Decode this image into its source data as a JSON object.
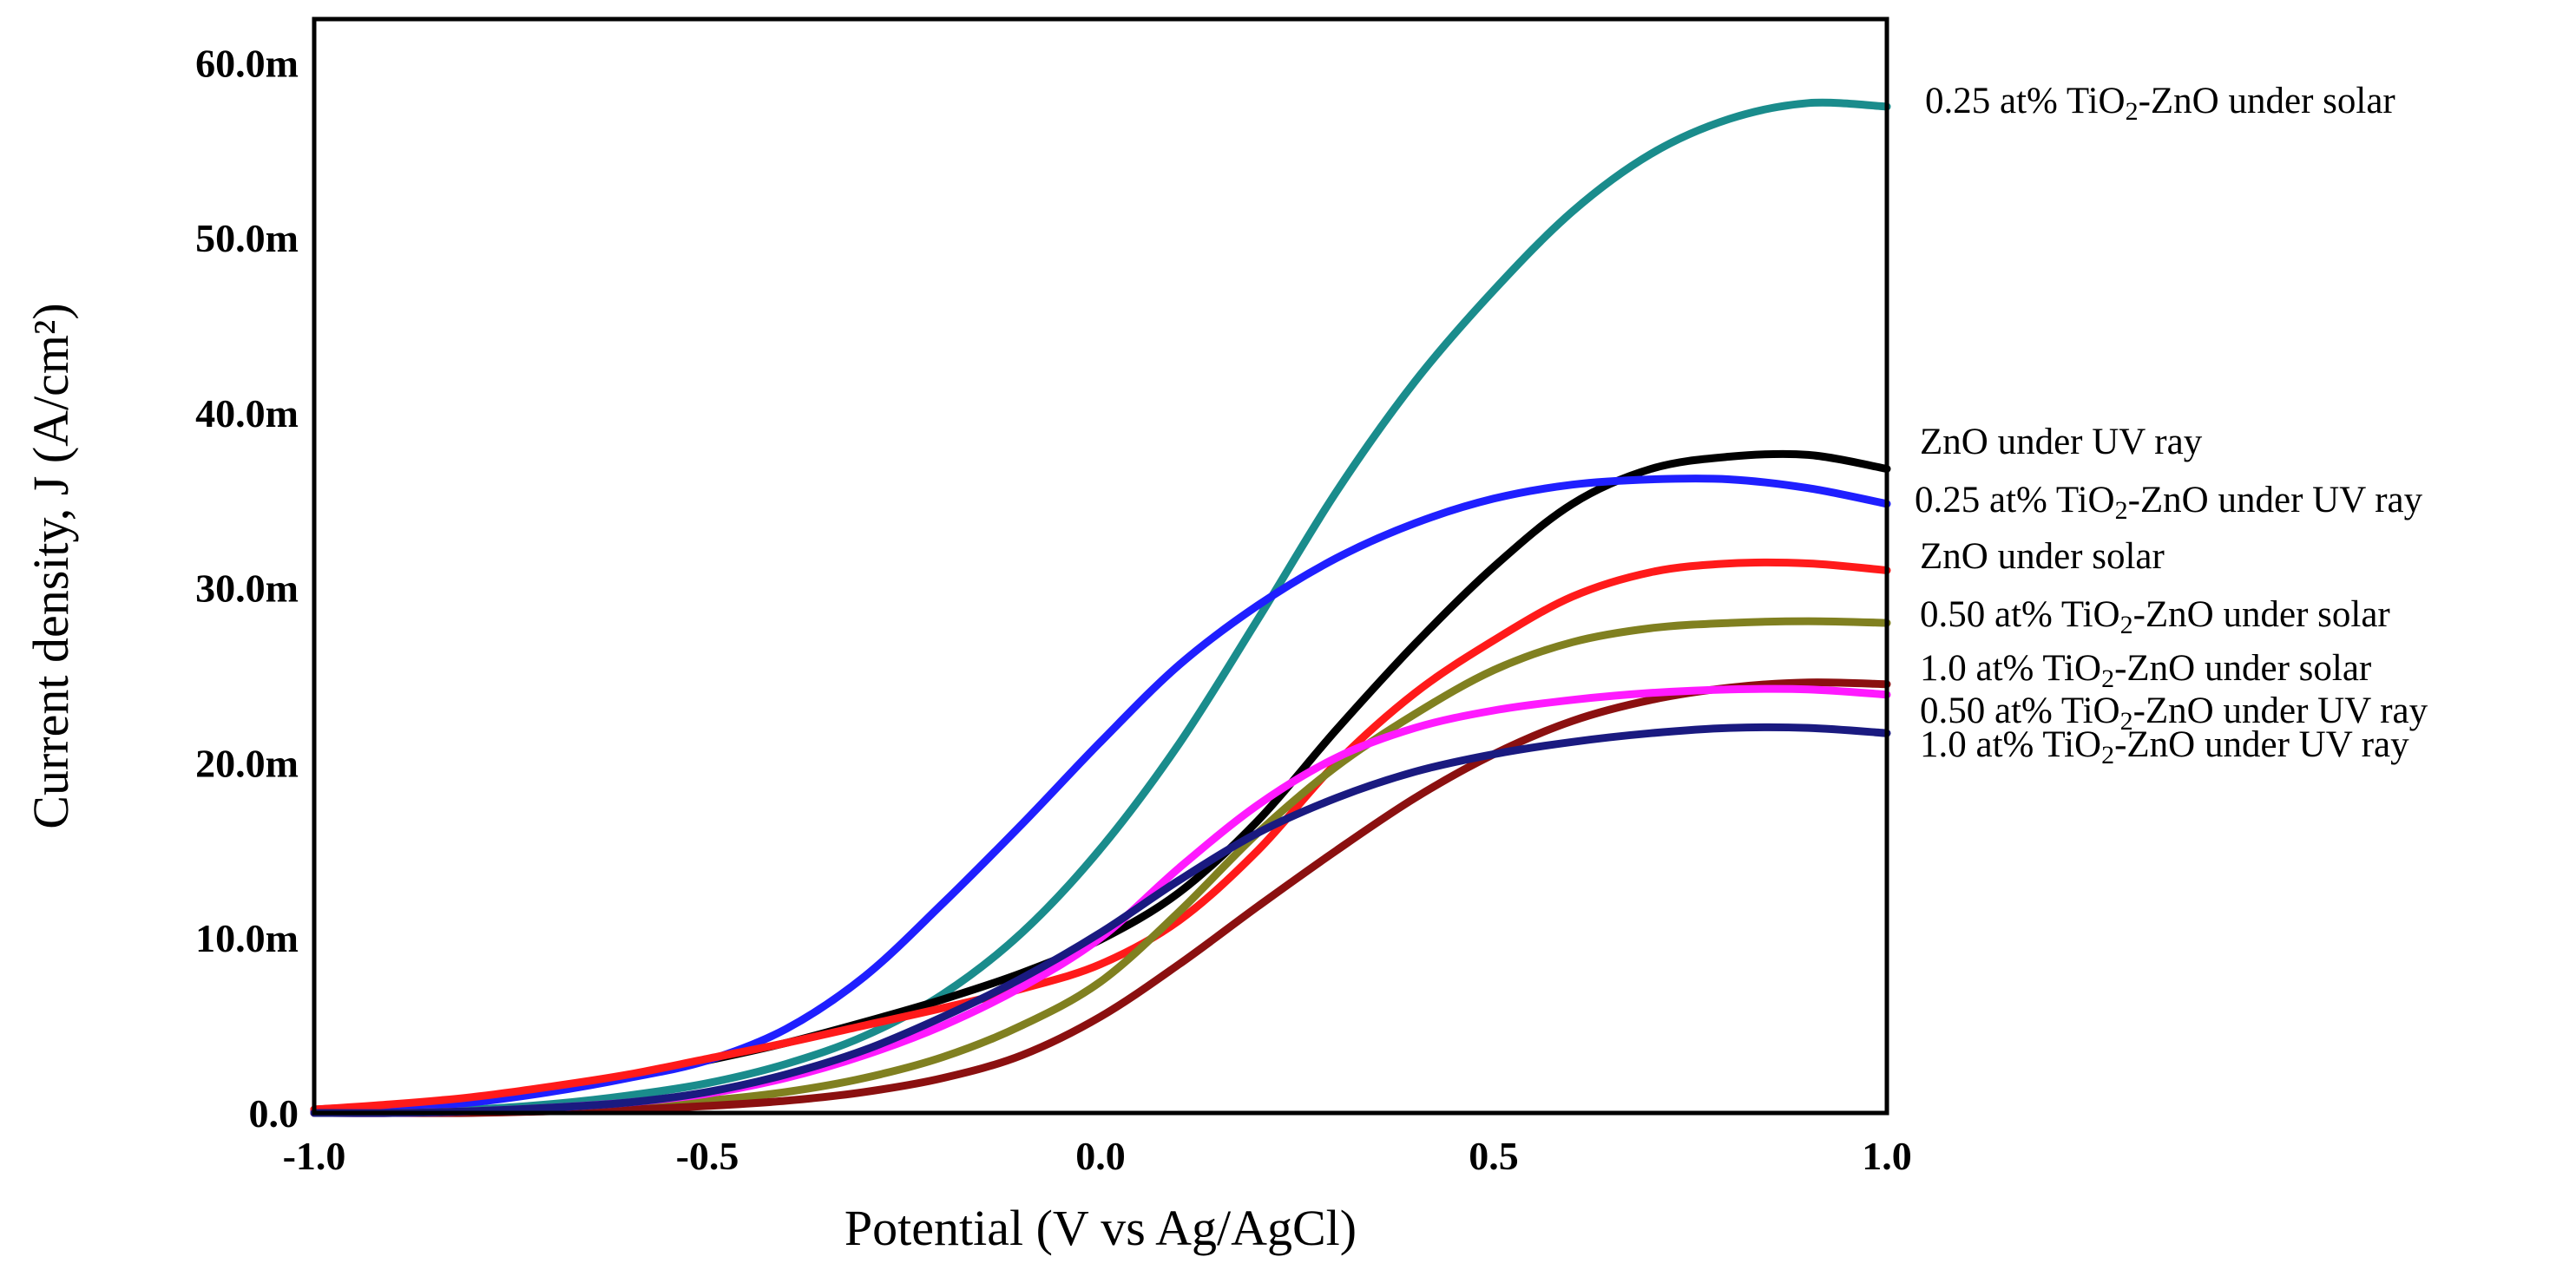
{
  "chart_data": {
    "type": "line",
    "title": "",
    "xlabel": "Potential (V vs Ag/AgCl)",
    "ylabel": "Current density, J (A/cm²)",
    "xlim": [
      -1.0,
      1.0
    ],
    "ylim": [
      0,
      0.0625
    ],
    "x_ticks": [
      -1.0,
      -0.5,
      0.0,
      0.5,
      1.0
    ],
    "x_tick_labels": [
      "-1.0",
      "-0.5",
      "0.0",
      "0.5",
      "1.0"
    ],
    "y_ticks": [
      0,
      0.01,
      0.02,
      0.03,
      0.04,
      0.05,
      0.06
    ],
    "y_tick_labels": [
      "0.0",
      "10.0m",
      "20.0m",
      "30.0m",
      "40.0m",
      "50.0m",
      "60.0m"
    ],
    "grid": false,
    "legend": "labels at right end of each curve",
    "x": [
      -1.0,
      -0.9,
      -0.8,
      -0.7,
      -0.6,
      -0.5,
      -0.4,
      -0.3,
      -0.2,
      -0.1,
      0.0,
      0.1,
      0.2,
      0.3,
      0.4,
      0.5,
      0.6,
      0.7,
      0.8,
      0.9,
      1.0
    ],
    "series": [
      {
        "name": "0.25 at% TiO2-ZnO under solar",
        "label_pre": "0.25 at% TiO",
        "label_sub": "2",
        "label_post": "-ZnO under solar",
        "color": "#1a8c8c",
        "values": [
          0.0,
          0.0001,
          0.0002,
          0.0005,
          0.001,
          0.0017,
          0.0028,
          0.0044,
          0.0068,
          0.0103,
          0.0151,
          0.0211,
          0.0282,
          0.0355,
          0.0418,
          0.047,
          0.0515,
          0.0548,
          0.0568,
          0.0577,
          0.0575
        ]
      },
      {
        "name": "ZnO under UV ray",
        "label_pre": "ZnO under UV ray",
        "label_sub": "",
        "label_post": "",
        "color": "#000000",
        "values": [
          0.0002,
          0.0004,
          0.0008,
          0.0014,
          0.0021,
          0.003,
          0.004,
          0.0052,
          0.0065,
          0.008,
          0.0099,
          0.0126,
          0.0167,
          0.0219,
          0.0268,
          0.0312,
          0.0348,
          0.0368,
          0.0375,
          0.0376,
          0.0368
        ]
      },
      {
        "name": "0.25 at% TiO2-ZnO under UV ray",
        "label_pre": "0.25 at% TiO",
        "label_sub": "2",
        "label_post": "-ZnO under UV ray",
        "color": "#1f1fff",
        "values": [
          0.0001,
          0.0003,
          0.0006,
          0.0012,
          0.002,
          0.003,
          0.0048,
          0.0078,
          0.012,
          0.0165,
          0.0212,
          0.0256,
          0.029,
          0.0317,
          0.0337,
          0.0351,
          0.0359,
          0.0362,
          0.0362,
          0.0357,
          0.0348
        ]
      },
      {
        "name": "ZnO under solar",
        "label_pre": "ZnO under solar",
        "label_sub": "",
        "label_post": "",
        "color": "#ff1a1a",
        "values": [
          0.0002,
          0.0005,
          0.0009,
          0.0015,
          0.0022,
          0.0031,
          0.004,
          0.005,
          0.006,
          0.0071,
          0.0085,
          0.011,
          0.015,
          0.02,
          0.024,
          0.027,
          0.0295,
          0.0309,
          0.0314,
          0.0314,
          0.031
        ]
      },
      {
        "name": "0.50 at% TiO2-ZnO under solar",
        "label_pre": "0.50 at% TiO",
        "label_sub": "2",
        "label_post": "-ZnO under solar",
        "color": "#808020",
        "values": [
          0.0,
          0.0,
          0.0001,
          0.0002,
          0.0004,
          0.0007,
          0.0012,
          0.002,
          0.0032,
          0.005,
          0.0075,
          0.0115,
          0.016,
          0.0198,
          0.0228,
          0.0253,
          0.0269,
          0.0277,
          0.028,
          0.0281,
          0.028
        ]
      },
      {
        "name": "1.0 at% TiO2-ZnO under solar",
        "label_pre": "1.0 at% TiO",
        "label_sub": "2",
        "label_post": "-ZnO under solar",
        "color": "#8b1010",
        "values": [
          0.0,
          0.0,
          0.0,
          0.0001,
          0.0002,
          0.0004,
          0.0007,
          0.0012,
          0.002,
          0.0033,
          0.0055,
          0.0085,
          0.0118,
          0.015,
          0.018,
          0.0205,
          0.0224,
          0.0236,
          0.0243,
          0.0246,
          0.0245
        ]
      },
      {
        "name": "0.50 at% TiO2-ZnO under UV ray",
        "label_pre": "0.50 at% TiO",
        "label_sub": "2",
        "label_post": "-ZnO under UV ray",
        "color": "#ff1aff",
        "values": [
          0.0,
          0.0,
          0.0001,
          0.0003,
          0.0006,
          0.0011,
          0.002,
          0.0033,
          0.005,
          0.0072,
          0.01,
          0.014,
          0.0176,
          0.0203,
          0.022,
          0.023,
          0.0236,
          0.024,
          0.0242,
          0.0242,
          0.0239
        ]
      },
      {
        "name": "1.0 at% TiO2-ZnO under UV ray",
        "label_pre": "1.0 at% TiO",
        "label_sub": "2",
        "label_post": "-ZnO under UV ray",
        "color": "#1a1a80",
        "values": [
          0.0,
          0.0,
          0.0001,
          0.0003,
          0.0006,
          0.0012,
          0.0022,
          0.0036,
          0.0055,
          0.0077,
          0.0103,
          0.0133,
          0.016,
          0.018,
          0.0195,
          0.0205,
          0.0212,
          0.0217,
          0.022,
          0.022,
          0.0217
        ]
      }
    ]
  }
}
